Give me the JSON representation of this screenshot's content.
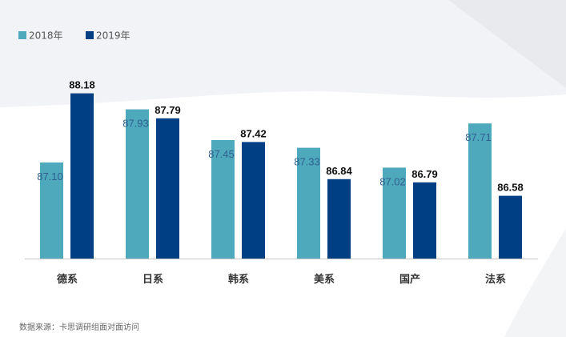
{
  "chart_data": {
    "type": "bar",
    "categories": [
      "德系",
      "日系",
      "韩系",
      "美系",
      "国产",
      "法系"
    ],
    "series": [
      {
        "name": "2018年",
        "values": [
          87.1,
          87.93,
          87.45,
          87.33,
          87.02,
          87.71
        ]
      },
      {
        "name": "2019年",
        "values": [
          88.18,
          87.79,
          87.42,
          86.84,
          86.79,
          86.58
        ]
      }
    ],
    "value_labels": [
      [
        "87.10",
        "87.93",
        "87.45",
        "87.33",
        "87.02",
        "87.71"
      ],
      [
        "88.18",
        "87.79",
        "87.42",
        "86.84",
        "86.79",
        "86.58"
      ]
    ],
    "colors": [
      "#4fa9bd",
      "#003f83"
    ],
    "legend_position": "top-left",
    "grid": false,
    "ylim": [
      85.6,
      88.35
    ]
  },
  "source_note": "数据来源：卡思调研组面对面访问"
}
